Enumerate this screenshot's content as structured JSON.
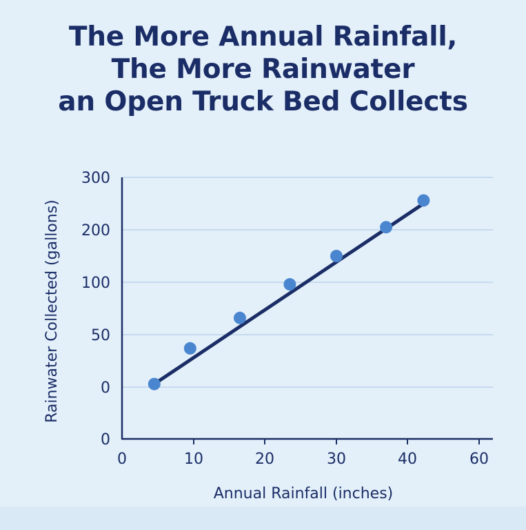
{
  "title_lines": [
    "The More Annual Rainfall,",
    "The More Rainwater",
    "an Open Truck Bed Collects"
  ],
  "colors": {
    "background": "#e3f0fa",
    "text": "#1b2d66",
    "grid": "#a9c3e2",
    "axis": "#1b2d66",
    "trend_line": "#1b2d66",
    "point": "#4a86cf"
  },
  "chart_data": {
    "type": "scatter",
    "title": "The More Annual Rainfall, The More Rainwater an Open Truck Bed Collects",
    "xlabel": "Annual Rainfall (inches)",
    "ylabel": "Rainwater Collected (gallons)",
    "x_ticks": [
      "0",
      "10",
      "20",
      "30",
      "40",
      "60"
    ],
    "y_ticks": [
      "0",
      "0",
      "50",
      "100",
      "200",
      "300"
    ],
    "grid": "horizontal",
    "legend": "none",
    "points": [
      {
        "x": 4.5,
        "y": 3
      },
      {
        "x": 9.5,
        "y": 37
      },
      {
        "x": 16.5,
        "y": 66
      },
      {
        "x": 23.5,
        "y": 98
      },
      {
        "x": 30,
        "y": 150
      },
      {
        "x": 37,
        "y": 205
      },
      {
        "x": 44.5,
        "y": 256
      }
    ],
    "trend_line": {
      "x": [
        4.5,
        44.5
      ],
      "y": [
        3,
        250
      ]
    }
  }
}
